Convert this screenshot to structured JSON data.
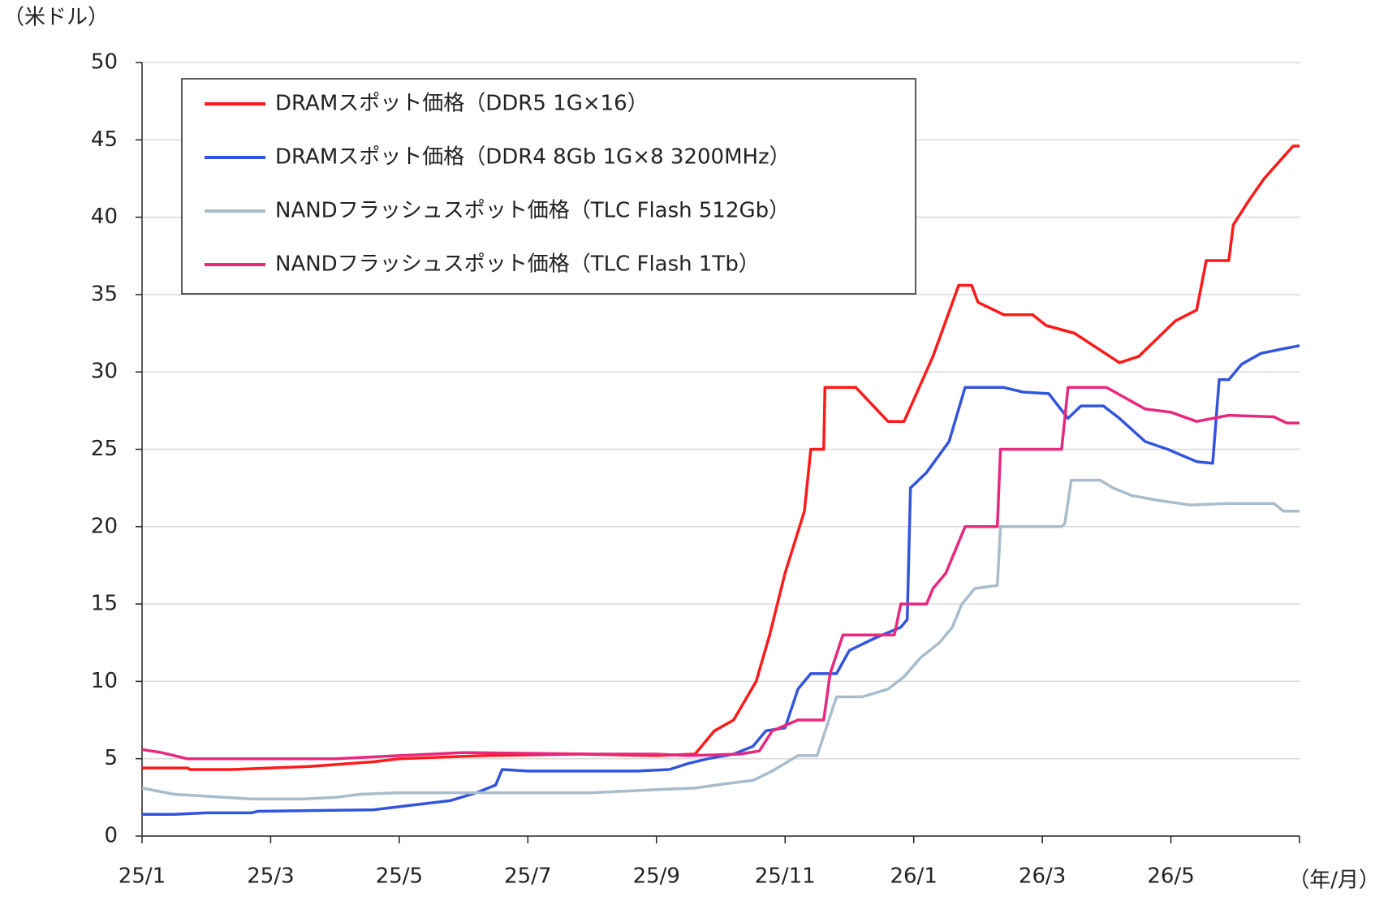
{
  "chart_data": {
    "type": "line",
    "y_label": "（米ドル）",
    "x_label": "（年/月）",
    "xlim": [
      0,
      18
    ],
    "xticks": [
      {
        "value": 0,
        "label": "25/1"
      },
      {
        "value": 2,
        "label": "25/3"
      },
      {
        "value": 4,
        "label": "25/5"
      },
      {
        "value": 6,
        "label": "25/7"
      },
      {
        "value": 8,
        "label": "25/9"
      },
      {
        "value": 10,
        "label": "25/11"
      },
      {
        "value": 12,
        "label": "26/1"
      },
      {
        "value": 14,
        "label": "26/3"
      },
      {
        "value": 16,
        "label": "26/5"
      },
      {
        "value": 18,
        "label": ""
      }
    ],
    "ylim": [
      0,
      50
    ],
    "yticks": [
      0,
      5,
      10,
      15,
      20,
      25,
      30,
      35,
      40,
      45,
      50
    ],
    "grid": true,
    "legend": "upper left",
    "series": [
      {
        "name": "DRAMスポット価格（DDR5 1G×16）",
        "color": "#ff1a1a",
        "x": [
          0,
          0.7,
          0.75,
          1.4,
          2.6,
          3.6,
          4.0,
          5.3,
          6.8,
          8.0,
          8.6,
          8.9,
          9.2,
          9.55,
          9.76,
          10.0,
          10.3,
          10.4,
          10.6,
          10.62,
          11.1,
          11.6,
          11.85,
          12.3,
          12.7,
          12.9,
          13.0,
          13.4,
          13.85,
          14.06,
          14.5,
          15.2,
          15.5,
          16.07,
          16.4,
          16.55,
          16.9,
          16.97,
          17.2,
          17.45,
          17.9,
          18
        ],
        "values": [
          4.4,
          4.4,
          4.3,
          4.3,
          4.5,
          4.8,
          5.0,
          5.2,
          5.3,
          5.2,
          5.3,
          6.8,
          7.5,
          10,
          13,
          17,
          21,
          25,
          25,
          29,
          29,
          26.8,
          26.8,
          31,
          35.6,
          35.6,
          34.5,
          33.7,
          33.7,
          33,
          32.5,
          30.6,
          31,
          33.3,
          34,
          37.2,
          37.2,
          39.5,
          41,
          42.5,
          44.6,
          44.6
        ]
      },
      {
        "name": "DRAMスポット価格（DDR4 8Gb 1G×8 3200MHz）",
        "color": "#3355dd",
        "x": [
          0,
          0.5,
          1,
          1.7,
          1.8,
          3.6,
          4.2,
          4.8,
          5.2,
          5.5,
          5.6,
          6,
          7.7,
          8.2,
          8.5,
          8.8,
          9.2,
          9.5,
          9.7,
          10,
          10.2,
          10.4,
          10.8,
          11.0,
          11.4,
          11.8,
          11.9,
          11.95,
          12.2,
          12.55,
          12.8,
          13.4,
          13.7,
          14.1,
          14.4,
          14.6,
          14.95,
          15.2,
          15.6,
          15.95,
          16.4,
          16.65,
          16.75,
          16.9,
          17.1,
          17.4,
          17.75,
          18
        ],
        "values": [
          1.4,
          1.4,
          1.5,
          1.5,
          1.6,
          1.7,
          2.0,
          2.3,
          2.8,
          3.3,
          4.3,
          4.2,
          4.2,
          4.3,
          4.7,
          5.0,
          5.3,
          5.8,
          6.8,
          7.0,
          9.5,
          10.5,
          10.5,
          12,
          12.8,
          13.5,
          14,
          22.5,
          23.5,
          25.5,
          29,
          29,
          28.7,
          28.6,
          27,
          27.8,
          27.8,
          27,
          25.5,
          25,
          24.2,
          24.1,
          29.5,
          29.5,
          30.5,
          31.2,
          31.5,
          31.7
        ]
      },
      {
        "name": "NANDフラッシュスポット価格（TLC Flash 512Gb）",
        "color": "#a9bccb",
        "x": [
          0,
          0.5,
          0.9,
          1.3,
          1.7,
          2.5,
          3,
          3.4,
          4,
          7,
          7.5,
          8,
          8.6,
          9.1,
          9.5,
          9.8,
          10.2,
          10.5,
          10.6,
          10.8,
          11.2,
          11.6,
          11.85,
          12.1,
          12.4,
          12.6,
          12.75,
          12.95,
          13.3,
          13.35,
          14.3,
          14.35,
          14.45,
          14.9,
          15.1,
          15.4,
          15.8,
          16.3,
          16.9,
          17.6,
          17.75,
          18
        ],
        "values": [
          3.1,
          2.7,
          2.6,
          2.5,
          2.4,
          2.4,
          2.5,
          2.7,
          2.8,
          2.8,
          2.9,
          3.0,
          3.1,
          3.4,
          3.6,
          4.2,
          5.2,
          5.2,
          6.5,
          9,
          9,
          9.5,
          10.3,
          11.5,
          12.5,
          13.5,
          15,
          16,
          16.2,
          20,
          20,
          20.2,
          23,
          23,
          22.5,
          22,
          21.7,
          21.4,
          21.5,
          21.5,
          21,
          21
        ]
      },
      {
        "name": "NANDフラッシュスポット価格（TLC Flash 1Tb）",
        "color": "#e8287d",
        "x": [
          0,
          0.3,
          0.7,
          3,
          4,
          5,
          7,
          8,
          8.5,
          9.3,
          9.6,
          9.8,
          10.2,
          10.6,
          10.7,
          10.9,
          11.7,
          11.8,
          12.2,
          12.3,
          12.5,
          12.6,
          12.8,
          13.3,
          13.35,
          14.3,
          14.4,
          15.0,
          15.3,
          15.6,
          16.0,
          16.4,
          16.9,
          17.6,
          17.8,
          18
        ],
        "values": [
          5.6,
          5.4,
          5.0,
          5.0,
          5.2,
          5.4,
          5.3,
          5.3,
          5.2,
          5.3,
          5.5,
          6.8,
          7.5,
          7.5,
          10.5,
          13,
          13,
          15,
          15,
          16,
          17,
          18,
          20,
          20,
          25,
          25,
          29,
          29,
          28.3,
          27.6,
          27.4,
          26.8,
          27.2,
          27.1,
          26.7,
          26.7
        ]
      }
    ]
  }
}
